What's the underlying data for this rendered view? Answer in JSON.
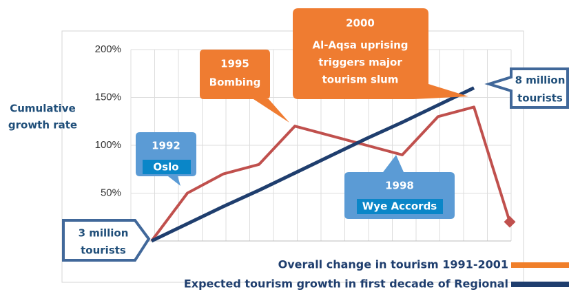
{
  "chart_data": {
    "type": "line",
    "y_label": [
      "Cumulative",
      "growth rate"
    ],
    "categories": [
      null,
      null,
      null,
      null,
      null,
      null,
      null,
      null,
      null,
      null,
      null
    ],
    "ylim": [
      0,
      200
    ],
    "yticks": [
      {
        "value": 50,
        "label": "50%"
      },
      {
        "value": 100,
        "label": "100%"
      },
      {
        "value": 150,
        "label": "150%"
      },
      {
        "value": 200,
        "label": "200%"
      }
    ],
    "grid": true,
    "series": [
      {
        "name": "Overall change in tourism 1991-2001",
        "color": "#c0504d",
        "legend_color": "#f07f2a",
        "values": [
          0,
          50,
          70,
          80,
          120,
          110,
          100,
          90,
          130,
          140,
          20
        ]
      },
      {
        "name": "Expected tourism growth in first decade of Regional",
        "color": "#1f3e6e",
        "legend_color": "#1f3e6e",
        "values": [
          0,
          18,
          36,
          53,
          71,
          89,
          107,
          124,
          142,
          160,
          null
        ]
      }
    ],
    "annotations": [
      {
        "title": "1992",
        "lines": [
          "Oslo"
        ]
      },
      {
        "title": "1995",
        "lines": [
          "Bombing"
        ]
      },
      {
        "title": "2000",
        "lines": [
          "Al-Aqsa uprising",
          "triggers major",
          "tourism slum"
        ]
      },
      {
        "title": "1998",
        "lines": [
          "Wye Accords"
        ]
      }
    ],
    "boxes": [
      {
        "lines": [
          "3 million",
          "tourists"
        ]
      },
      {
        "lines": [
          "8 million",
          "tourists"
        ]
      }
    ]
  }
}
